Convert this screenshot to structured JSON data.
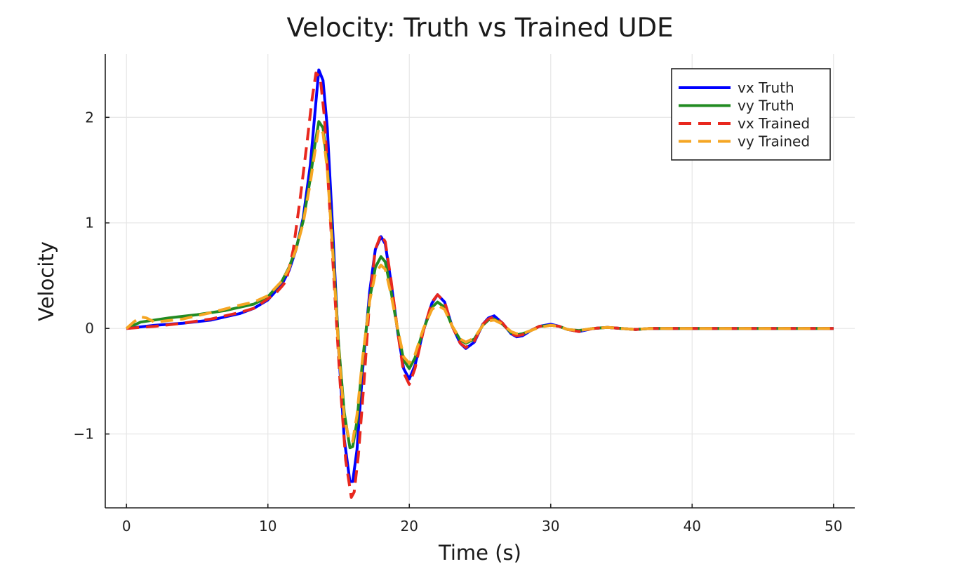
{
  "chart_data": {
    "type": "line",
    "title": "Velocity: Truth vs Trained UDE",
    "xlabel": "Time (s)",
    "ylabel": "Velocity",
    "xlim": [
      -1.5,
      51.5
    ],
    "ylim": [
      -1.7,
      2.6
    ],
    "xticks": [
      0,
      10,
      20,
      30,
      40,
      50
    ],
    "yticks": [
      -1,
      0,
      1,
      2
    ],
    "xtick_labels": [
      "0",
      "10",
      "20",
      "30",
      "40",
      "50"
    ],
    "ytick_labels": [
      "−1",
      "0",
      "1",
      "2"
    ],
    "grid": true,
    "legend_position": "top-right",
    "series": [
      {
        "name": "vx Truth",
        "color": "#0000ff",
        "dash": "solid",
        "x": [
          0,
          2,
          4,
          6,
          8,
          9,
          10,
          11,
          11.5,
          12,
          12.5,
          13,
          13.3,
          13.6,
          13.9,
          14.2,
          14.6,
          15.0,
          15.4,
          15.8,
          16.0,
          16.3,
          16.7,
          17.2,
          17.6,
          18.0,
          18.3,
          18.7,
          19.2,
          19.6,
          20.0,
          20.4,
          21.0,
          21.6,
          22.0,
          22.5,
          23.0,
          23.6,
          24.0,
          24.6,
          25.2,
          25.6,
          26.0,
          26.6,
          27.2,
          27.6,
          28.0,
          28.6,
          29.2,
          30.0,
          30.6,
          31.2,
          32.0,
          33.0,
          34.0,
          35.0,
          36.0,
          37.0,
          38.0,
          40.0,
          42.0,
          45.0,
          48.0,
          50.0
        ],
        "y": [
          0,
          0.03,
          0.05,
          0.08,
          0.14,
          0.19,
          0.27,
          0.42,
          0.55,
          0.75,
          1.05,
          1.55,
          2.0,
          2.45,
          2.35,
          1.9,
          0.9,
          -0.2,
          -1.05,
          -1.45,
          -1.45,
          -1.15,
          -0.4,
          0.35,
          0.75,
          0.87,
          0.8,
          0.45,
          -0.05,
          -0.38,
          -0.48,
          -0.35,
          -0.02,
          0.24,
          0.32,
          0.25,
          0.03,
          -0.14,
          -0.19,
          -0.13,
          0.04,
          0.1,
          0.12,
          0.05,
          -0.05,
          -0.08,
          -0.07,
          -0.02,
          0.02,
          0.04,
          0.02,
          -0.01,
          -0.03,
          0.0,
          0.01,
          0.0,
          -0.01,
          0.0,
          0.0,
          0.0,
          0.0,
          0.0,
          0.0,
          0.0
        ]
      },
      {
        "name": "vy Truth",
        "color": "#228b22",
        "dash": "solid",
        "x": [
          0,
          1,
          3,
          5,
          7,
          9,
          10,
          11,
          11.5,
          12,
          12.5,
          13,
          13.3,
          13.6,
          13.9,
          14.2,
          14.6,
          15.0,
          15.4,
          15.8,
          16.0,
          16.3,
          16.7,
          17.2,
          17.6,
          18.0,
          18.3,
          18.7,
          19.2,
          19.6,
          20.0,
          20.4,
          21.0,
          21.6,
          22.0,
          22.5,
          23.0,
          23.6,
          24.0,
          24.6,
          25.2,
          25.6,
          26.0,
          26.6,
          27.2,
          27.6,
          28.0,
          28.6,
          29.2,
          30.0,
          30.6,
          31.2,
          32.0,
          33.0,
          34.0,
          35.0,
          36.0,
          37.0,
          38.0,
          40.0,
          42.0,
          45.0,
          48.0,
          50.0
        ],
        "y": [
          0,
          0.06,
          0.1,
          0.13,
          0.17,
          0.23,
          0.3,
          0.45,
          0.58,
          0.76,
          1.02,
          1.42,
          1.72,
          1.96,
          1.9,
          1.55,
          0.75,
          -0.15,
          -0.8,
          -1.13,
          -1.12,
          -0.88,
          -0.3,
          0.28,
          0.58,
          0.68,
          0.63,
          0.36,
          -0.03,
          -0.3,
          -0.38,
          -0.28,
          -0.01,
          0.2,
          0.25,
          0.2,
          0.03,
          -0.11,
          -0.14,
          -0.1,
          0.03,
          0.08,
          0.09,
          0.04,
          -0.04,
          -0.06,
          -0.05,
          -0.02,
          0.02,
          0.03,
          0.02,
          -0.01,
          -0.02,
          0.0,
          0.01,
          0.0,
          -0.01,
          0.0,
          0.0,
          0.0,
          0.0,
          0.0,
          0.0,
          0.0
        ]
      },
      {
        "name": "vx Trained",
        "color": "#e8281e",
        "dash": "dashed",
        "x": [
          0,
          1,
          2,
          4,
          6,
          8,
          9,
          10,
          10.6,
          11.0,
          11.3,
          11.8,
          12.3,
          12.8,
          13.1,
          13.4,
          13.7,
          14.0,
          14.3,
          14.7,
          15.1,
          15.5,
          15.9,
          16.1,
          16.4,
          16.8,
          17.2,
          17.6,
          18.0,
          18.3,
          18.7,
          19.2,
          19.6,
          20.0,
          20.4,
          21.0,
          21.6,
          22.0,
          22.5,
          23.0,
          23.6,
          24.0,
          24.6,
          25.2,
          25.6,
          26.0,
          26.6,
          27.2,
          27.6,
          28.0,
          28.6,
          29.2,
          30.0,
          30.6,
          31.2,
          32.0,
          33.0,
          34.0,
          35.0,
          36.0,
          37.0,
          38.0,
          40.0,
          42.0,
          45.0,
          48.0,
          50.0
        ],
        "y": [
          0,
          0.01,
          0.02,
          0.05,
          0.09,
          0.15,
          0.19,
          0.28,
          0.34,
          0.4,
          0.45,
          0.75,
          1.25,
          1.8,
          2.15,
          2.42,
          2.38,
          2.0,
          1.3,
          0.4,
          -0.5,
          -1.25,
          -1.6,
          -1.55,
          -1.2,
          -0.5,
          0.28,
          0.75,
          0.89,
          0.82,
          0.47,
          -0.05,
          -0.42,
          -0.53,
          -0.38,
          -0.02,
          0.25,
          0.32,
          0.25,
          0.03,
          -0.14,
          -0.18,
          -0.12,
          0.04,
          0.09,
          0.11,
          0.05,
          -0.05,
          -0.07,
          -0.06,
          -0.02,
          0.02,
          0.03,
          0.02,
          -0.01,
          -0.03,
          0.0,
          0.01,
          0.0,
          -0.01,
          0.0,
          0.0,
          0.0,
          0.0,
          0.0,
          0.0,
          0.0
        ]
      },
      {
        "name": "vy Trained",
        "color": "#f5a623",
        "dash": "dashed",
        "x": [
          0,
          0.5,
          1.0,
          1.4,
          2,
          4,
          6,
          8,
          9,
          10,
          11,
          11.5,
          12,
          12.5,
          13,
          13.3,
          13.6,
          13.9,
          14.2,
          14.6,
          15.0,
          15.4,
          15.8,
          16.0,
          16.3,
          16.7,
          17.2,
          17.6,
          18.0,
          18.3,
          18.7,
          19.2,
          19.6,
          20.0,
          20.4,
          21.0,
          21.6,
          22.0,
          22.5,
          23.0,
          23.6,
          24.0,
          24.6,
          25.2,
          25.6,
          26.0,
          26.6,
          27.2,
          27.6,
          28.0,
          28.6,
          29.2,
          30.0,
          30.6,
          31.2,
          32.0,
          33.0,
          34.0,
          35.0,
          36.0,
          37.0,
          38.0,
          40.0,
          42.0,
          45.0,
          48.0,
          50.0
        ],
        "y": [
          0,
          0.06,
          0.11,
          0.1,
          0.06,
          0.09,
          0.15,
          0.22,
          0.25,
          0.31,
          0.45,
          0.57,
          0.75,
          1.0,
          1.38,
          1.65,
          1.9,
          1.85,
          1.5,
          0.7,
          -0.2,
          -0.85,
          -1.08,
          -1.07,
          -0.82,
          -0.28,
          0.26,
          0.52,
          0.6,
          0.56,
          0.33,
          -0.02,
          -0.27,
          -0.33,
          -0.25,
          0.0,
          0.18,
          0.22,
          0.18,
          0.03,
          -0.1,
          -0.13,
          -0.09,
          0.03,
          0.07,
          0.08,
          0.04,
          -0.03,
          -0.05,
          -0.05,
          -0.02,
          0.01,
          0.03,
          0.02,
          -0.01,
          -0.02,
          0.0,
          0.01,
          0.0,
          -0.01,
          0.0,
          0.0,
          0.0,
          0.0,
          0.0,
          0.0,
          0.0
        ]
      }
    ]
  }
}
